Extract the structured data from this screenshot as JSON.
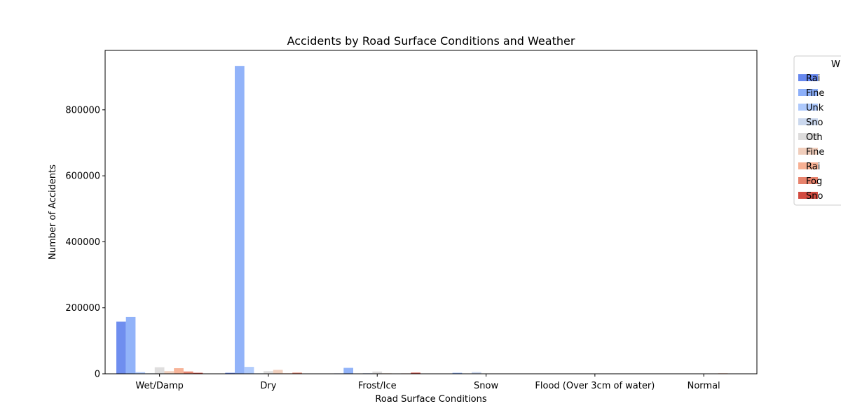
{
  "chart_data": {
    "type": "bar",
    "title": "Accidents by Road Surface Conditions and Weather",
    "xlabel": "Road Surface Conditions",
    "ylabel": "Number of Accidents",
    "categories": [
      "Wet/Damp",
      "Dry",
      "Frost/Ice",
      "Snow",
      "Flood (Over 3cm of water)",
      "Normal"
    ],
    "ylim": [
      0,
      980000
    ],
    "yticks": [
      0,
      200000,
      400000,
      600000,
      800000
    ],
    "grid": false,
    "legend": {
      "title": "W",
      "placement": "outside-right",
      "entries": [
        "Rai",
        "Fine",
        "Unk",
        "Sno",
        "Oth",
        "Fine",
        "Rai",
        "Fog",
        "Sno"
      ]
    },
    "series": [
      {
        "color": "#6788ee",
        "values": [
          158000,
          3000,
          1200,
          400,
          50,
          200
        ]
      },
      {
        "color": "#8caff9",
        "values": [
          172000,
          933000,
          18000,
          3000,
          100,
          1000
        ]
      },
      {
        "color": "#aec9fc",
        "values": [
          5000,
          21000,
          900,
          300,
          20,
          100
        ]
      },
      {
        "color": "#cbd8ee",
        "values": [
          1500,
          1500,
          2000,
          5500,
          10,
          50
        ]
      },
      {
        "color": "#dddcdc",
        "values": [
          20000,
          8000,
          7000,
          1000,
          20,
          300
        ]
      },
      {
        "color": "#f0cdbb",
        "values": [
          8000,
          12000,
          1500,
          300,
          10,
          100
        ]
      },
      {
        "color": "#f7b093",
        "values": [
          17000,
          1500,
          900,
          200,
          30,
          1500
        ]
      },
      {
        "color": "#e7826c",
        "values": [
          7000,
          3500,
          1200,
          100,
          5,
          50
        ]
      },
      {
        "color": "#d24b40",
        "values": [
          3000,
          500,
          3500,
          500,
          5,
          50
        ]
      }
    ]
  }
}
